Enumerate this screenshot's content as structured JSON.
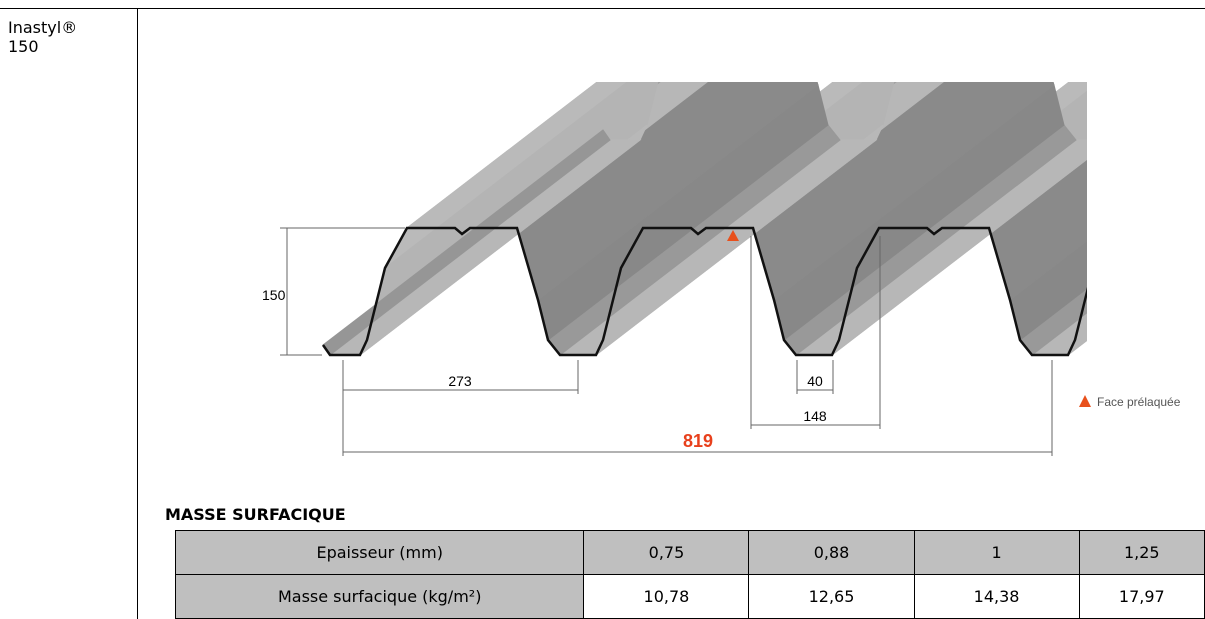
{
  "product": {
    "name": "Inastyl®",
    "size": "150"
  },
  "diagram": {
    "height_label": "150",
    "pitch_label": "273",
    "bottom_label": "40",
    "top_label": "148",
    "width_label": "819",
    "legend": "Face prélaquée"
  },
  "section_title": "MASSE SURFACIQUE",
  "table": {
    "rows": [
      [
        "Epaisseur (mm)",
        "0,75",
        "0,88",
        "1",
        "1,25"
      ],
      [
        "Masse surfacique (kg/m²)",
        "10,78",
        "12,65",
        "14,38",
        "17,97"
      ]
    ]
  }
}
